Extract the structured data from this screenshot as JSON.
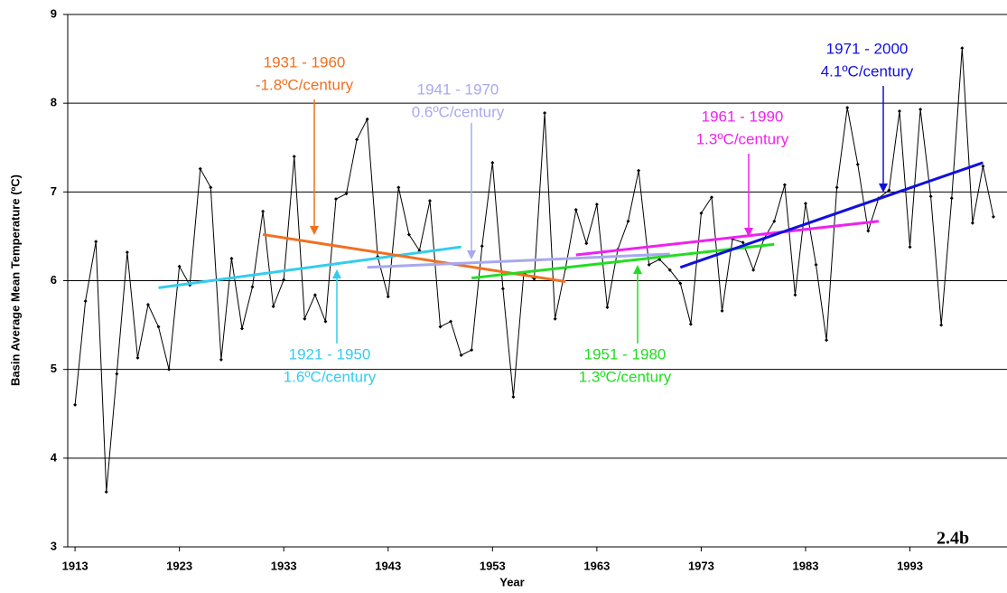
{
  "chart_data": {
    "type": "line",
    "x_label": "Year",
    "y_label": "Basin Average Mean Temperature (ºC)",
    "panel_label": "2.4b",
    "xlim": [
      1912.3,
      2002.3
    ],
    "ylim": [
      3,
      9
    ],
    "xticks": [
      1913,
      1923,
      1933,
      1943,
      1953,
      1963,
      1973,
      1983,
      1993
    ],
    "yticks": [
      3,
      4,
      5,
      6,
      7,
      8,
      9
    ],
    "grid": true,
    "color": "#000000",
    "x": [
      1913,
      1914,
      1915,
      1916,
      1917,
      1918,
      1919,
      1920,
      1921,
      1922,
      1923,
      1924,
      1925,
      1926,
      1927,
      1928,
      1929,
      1930,
      1931,
      1932,
      1933,
      1934,
      1935,
      1936,
      1937,
      1938,
      1939,
      1940,
      1941,
      1942,
      1943,
      1944,
      1945,
      1946,
      1947,
      1948,
      1949,
      1950,
      1951,
      1952,
      1953,
      1954,
      1955,
      1956,
      1957,
      1958,
      1959,
      1960,
      1961,
      1962,
      1963,
      1964,
      1965,
      1966,
      1967,
      1968,
      1969,
      1970,
      1971,
      1972,
      1973,
      1974,
      1975,
      1976,
      1977,
      1978,
      1979,
      1980,
      1981,
      1982,
      1983,
      1984,
      1985,
      1986,
      1987,
      1988,
      1989,
      1990,
      1991,
      1992,
      1993,
      1994,
      1995,
      1996,
      1997,
      1998,
      1999,
      2000,
      2001
    ],
    "values": [
      4.6,
      5.77,
      6.44,
      3.62,
      4.95,
      6.32,
      5.13,
      5.73,
      5.48,
      5.0,
      6.16,
      5.95,
      7.26,
      7.05,
      5.11,
      6.25,
      5.46,
      5.93,
      6.78,
      5.71,
      6.01,
      7.4,
      5.57,
      5.84,
      5.54,
      6.92,
      6.98,
      7.59,
      7.82,
      6.27,
      5.82,
      7.05,
      6.52,
      6.34,
      6.9,
      5.48,
      5.54,
      5.16,
      5.22,
      6.39,
      7.33,
      5.91,
      4.69,
      6.09,
      6.02,
      7.89,
      5.57,
      6.14,
      6.8,
      6.42,
      6.86,
      5.7,
      6.35,
      6.67,
      7.24,
      6.18,
      6.24,
      6.12,
      5.97,
      5.51,
      6.76,
      6.94,
      5.66,
      6.47,
      6.43,
      6.12,
      6.47,
      6.67,
      7.08,
      5.84,
      6.87,
      6.18,
      5.33,
      7.05,
      7.95,
      7.31,
      6.56,
      6.93,
      7.02,
      7.91,
      6.38,
      7.93,
      6.95,
      5.5,
      6.93,
      8.62,
      6.65,
      7.29,
      6.72
    ],
    "trends": [
      {
        "name": "1921 - 1950",
        "label": "1.6ºC/century",
        "color": "#33ccee",
        "x": [
          1921,
          1950
        ],
        "values": [
          5.92,
          6.38
        ]
      },
      {
        "name": "1931 - 1960",
        "label": "-1.8ºC/century",
        "color": "#f07020",
        "x": [
          1931,
          1960
        ],
        "values": [
          6.52,
          5.99
        ]
      },
      {
        "name": "1941 - 1970",
        "label": "0.6ºC/century",
        "color": "#a8a8f0",
        "x": [
          1941,
          1970
        ],
        "values": [
          6.15,
          6.3
        ]
      },
      {
        "name": "1951 - 1980",
        "label": "1.3ºC/century",
        "color": "#22dd22",
        "x": [
          1951,
          1980
        ],
        "values": [
          6.03,
          6.41
        ]
      },
      {
        "name": "1961 - 1990",
        "label": "1.3ºC/century",
        "color": "#ee22ee",
        "x": [
          1961,
          1990
        ],
        "values": [
          6.29,
          6.67
        ]
      },
      {
        "name": "1971 - 2000",
        "label": "4.1ºC/century",
        "color": "#1010dd",
        "x": [
          1971,
          2000
        ],
        "values": [
          6.15,
          7.33
        ]
      }
    ]
  }
}
